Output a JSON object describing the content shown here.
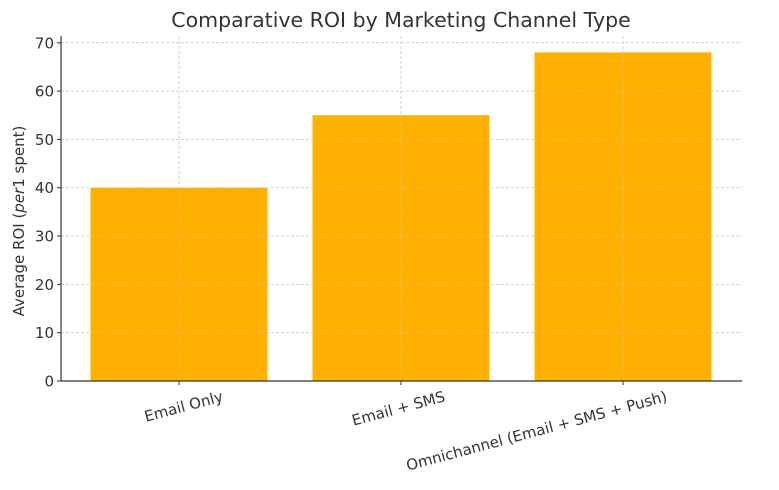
{
  "chart_data": {
    "type": "bar",
    "title": "Comparative ROI by Marketing Channel Type",
    "xlabel": "",
    "ylabel": "Average ROI (per1 spent)",
    "ylabel_parts": {
      "prefix": "Average ROI (",
      "italic": "per",
      "suffix": "1 spent)"
    },
    "categories": [
      "Email Only",
      "Email + SMS",
      "Omnichannel (Email + SMS + Push)"
    ],
    "values": [
      40,
      55,
      68
    ],
    "ylim": [
      0,
      71.4
    ],
    "yticks": [
      0,
      10,
      20,
      30,
      40,
      50,
      60,
      70
    ],
    "grid": true,
    "bar_color": "#FFB000",
    "xtick_rotation": -15,
    "legend": null
  }
}
